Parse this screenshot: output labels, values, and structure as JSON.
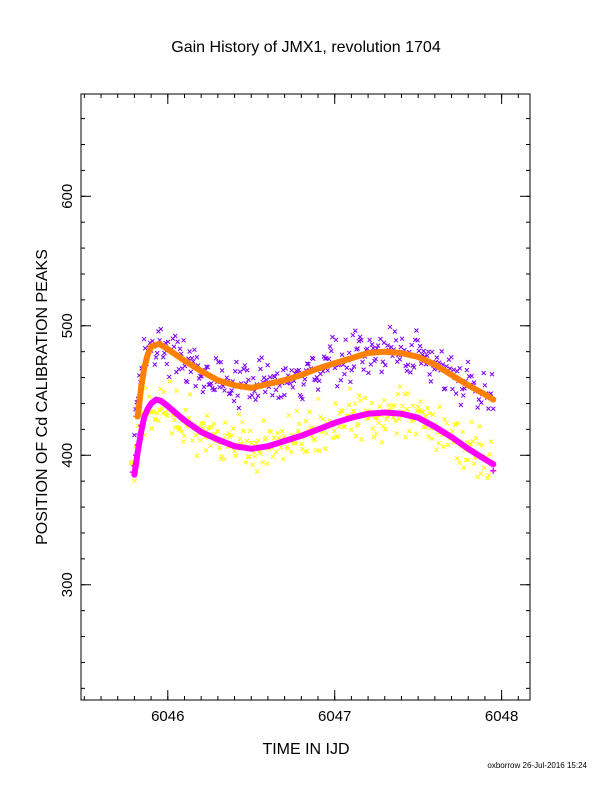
{
  "chart_data": {
    "type": "scatter",
    "title": "Gain History of JMX1, revolution 1704",
    "xlabel": "TIME IN IJD",
    "ylabel": "POSITION OF Cd CALIBRATION PEAKS",
    "xlim": [
      6045.48,
      6048.17
    ],
    "ylim": [
      211,
      679
    ],
    "x_ticks": [
      6046,
      6047,
      6048
    ],
    "y_ticks": [
      300,
      400,
      500,
      600
    ],
    "x_minor_step": 0.1,
    "y_minor_step": 20,
    "grid": false,
    "legend": "none",
    "series": [
      {
        "marker": "x",
        "color": "#7f00ff",
        "scatter": 13,
        "count": 300,
        "x_range": [
          6045.8,
          6047.95
        ],
        "trend_x": [
          6045.8,
          6045.85,
          6045.9,
          6045.95,
          6046.0,
          6046.1,
          6046.2,
          6046.3,
          6046.4,
          6046.5,
          6046.6,
          6046.7,
          6046.8,
          6046.9,
          6047.0,
          6047.1,
          6047.2,
          6047.3,
          6047.4,
          6047.5,
          6047.6,
          6047.7,
          6047.8,
          6047.9,
          6047.95
        ],
        "trend_y": [
          430,
          470,
          484,
          487,
          483,
          474,
          466,
          459,
          455,
          453,
          456,
          459,
          463,
          468,
          472,
          476,
          480,
          481,
          480,
          477,
          471,
          463,
          455,
          448,
          444
        ]
      },
      {
        "marker": "x",
        "color": "#ffff00",
        "scatter": 14,
        "count": 320,
        "x_range": [
          6045.78,
          6047.95
        ],
        "trend_x": [
          6045.78,
          6045.85,
          6045.9,
          6045.95,
          6046.0,
          6046.1,
          6046.2,
          6046.3,
          6046.4,
          6046.5,
          6046.6,
          6046.7,
          6046.8,
          6046.9,
          6047.0,
          6047.1,
          6047.2,
          6047.3,
          6047.4,
          6047.5,
          6047.6,
          6047.7,
          6047.8,
          6047.9,
          6047.95
        ],
        "trend_y": [
          380,
          425,
          440,
          442,
          437,
          426,
          418,
          412,
          407,
          405,
          408,
          412,
          415,
          421,
          426,
          430,
          433,
          434,
          433,
          430,
          422,
          415,
          406,
          397,
          392
        ]
      },
      {
        "marker": "line",
        "color": "#ff7f00",
        "x": [
          6045.82,
          6045.84,
          6045.86,
          6045.88,
          6045.9,
          6045.95,
          6046.0,
          6046.1,
          6046.2,
          6046.3,
          6046.4,
          6046.5,
          6046.6,
          6046.7,
          6046.8,
          6046.9,
          6047.0,
          6047.1,
          6047.2,
          6047.3,
          6047.4,
          6047.5,
          6047.6,
          6047.7,
          6047.8,
          6047.9,
          6047.95
        ],
        "y": [
          430,
          452,
          468,
          478,
          484,
          486,
          482,
          473,
          465,
          458,
          454,
          452,
          455,
          458,
          462,
          467,
          471,
          475,
          479,
          480,
          479,
          476,
          470,
          462,
          454,
          447,
          443
        ]
      },
      {
        "marker": "line",
        "color": "#ff00ff",
        "x": [
          6045.8,
          6045.82,
          6045.84,
          6045.86,
          6045.88,
          6045.9,
          6045.93,
          6045.96,
          6046.0,
          6046.1,
          6046.2,
          6046.3,
          6046.4,
          6046.5,
          6046.6,
          6046.7,
          6046.8,
          6046.9,
          6047.0,
          6047.1,
          6047.2,
          6047.3,
          6047.4,
          6047.5,
          6047.6,
          6047.7,
          6047.8,
          6047.9,
          6047.95
        ],
        "y": [
          385,
          403,
          418,
          430,
          436,
          440,
          443,
          442,
          438,
          427,
          418,
          412,
          407,
          405,
          407,
          411,
          415,
          420,
          425,
          429,
          432,
          433,
          432,
          429,
          422,
          414,
          405,
          397,
          393
        ]
      },
      {
        "marker": "plus",
        "color": "#ff00ff",
        "x": [
          6045.79,
          6045.8,
          6045.81,
          6045.82,
          6045.83,
          6045.84,
          6047.95
        ],
        "y": [
          387,
          392,
          400,
          408,
          416,
          423,
          388
        ]
      },
      {
        "marker": "plus",
        "color": "#ff7f00",
        "x": [
          6045.81,
          6045.82,
          6045.83
        ],
        "y": [
          430,
          437,
          445
        ]
      }
    ]
  },
  "footer": {
    "text": "oxborrow 26-Jul-2016 15:24"
  }
}
